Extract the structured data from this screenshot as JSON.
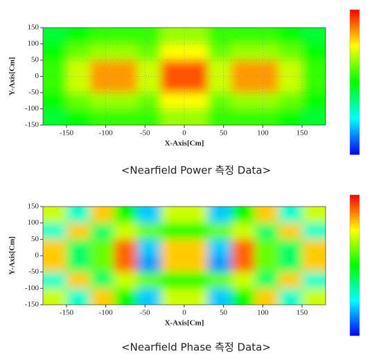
{
  "chart_data": [
    {
      "type": "heatmap",
      "title": "<Nearfield Power 측정 Data>",
      "xlabel": "X-Axis[Cm]",
      "ylabel": "Y-Axis[Cm]",
      "xlim": [
        -180,
        180
      ],
      "ylim": [
        -150,
        150
      ],
      "xticks": [
        -150,
        -100,
        -50,
        0,
        50,
        100,
        150
      ],
      "yticks": [
        150,
        100,
        50,
        0,
        -50,
        -100,
        -150
      ],
      "grid": true,
      "colormap": [
        "#0000ff",
        "#00ffff",
        "#00ff00",
        "#ffff00",
        "#ff0000"
      ],
      "zlim": [
        0,
        1
      ],
      "x": [
        -165,
        -135,
        -105,
        -75,
        -45,
        -15,
        15,
        45,
        75,
        105,
        135,
        165
      ],
      "y": [
        125,
        75,
        25,
        -25,
        -75,
        -125
      ],
      "z": [
        [
          0.45,
          0.5,
          0.55,
          0.55,
          0.55,
          0.65,
          0.65,
          0.55,
          0.55,
          0.55,
          0.5,
          0.45
        ],
        [
          0.5,
          0.6,
          0.65,
          0.65,
          0.6,
          0.75,
          0.75,
          0.6,
          0.65,
          0.65,
          0.6,
          0.5
        ],
        [
          0.55,
          0.7,
          0.85,
          0.85,
          0.7,
          0.92,
          0.92,
          0.7,
          0.85,
          0.85,
          0.7,
          0.55
        ],
        [
          0.55,
          0.7,
          0.85,
          0.85,
          0.7,
          0.92,
          0.92,
          0.7,
          0.85,
          0.85,
          0.7,
          0.55
        ],
        [
          0.5,
          0.6,
          0.65,
          0.65,
          0.6,
          0.75,
          0.75,
          0.6,
          0.65,
          0.65,
          0.6,
          0.5
        ],
        [
          0.45,
          0.5,
          0.55,
          0.55,
          0.55,
          0.65,
          0.65,
          0.55,
          0.55,
          0.55,
          0.5,
          0.45
        ]
      ]
    },
    {
      "type": "heatmap",
      "title": "<Nearfield Phase 측정 Data>",
      "xlabel": "X-Axis[Cm]",
      "ylabel": "Y-Axis[Cm]",
      "xlim": [
        -180,
        180
      ],
      "ylim": [
        -150,
        150
      ],
      "xticks": [
        -150,
        -100,
        -50,
        0,
        50,
        100,
        150
      ],
      "yticks": [
        150,
        100,
        50,
        0,
        -50,
        -100,
        -150
      ],
      "grid": false,
      "colormap": [
        "#0000ff",
        "#00ffff",
        "#00ff00",
        "#ffff00",
        "#ff0000"
      ],
      "zlim": [
        0,
        1
      ],
      "x": [
        -165,
        -135,
        -105,
        -75,
        -45,
        -15,
        15,
        45,
        75,
        105,
        135,
        165
      ],
      "y": [
        125,
        75,
        25,
        -25,
        -75,
        -125
      ],
      "z": [
        [
          0.7,
          0.3,
          0.8,
          0.5,
          0.2,
          0.7,
          0.7,
          0.2,
          0.5,
          0.8,
          0.3,
          0.7
        ],
        [
          0.3,
          0.8,
          0.4,
          0.7,
          0.6,
          0.5,
          0.5,
          0.6,
          0.7,
          0.4,
          0.8,
          0.3
        ],
        [
          0.8,
          0.4,
          0.6,
          0.9,
          0.2,
          0.8,
          0.8,
          0.2,
          0.9,
          0.6,
          0.4,
          0.8
        ],
        [
          0.8,
          0.4,
          0.6,
          0.9,
          0.15,
          0.8,
          0.8,
          0.15,
          0.9,
          0.6,
          0.4,
          0.8
        ],
        [
          0.3,
          0.8,
          0.4,
          0.7,
          0.6,
          0.5,
          0.5,
          0.6,
          0.7,
          0.4,
          0.8,
          0.3
        ],
        [
          0.7,
          0.3,
          0.8,
          0.5,
          0.2,
          0.7,
          0.7,
          0.2,
          0.5,
          0.8,
          0.3,
          0.7
        ]
      ]
    }
  ]
}
